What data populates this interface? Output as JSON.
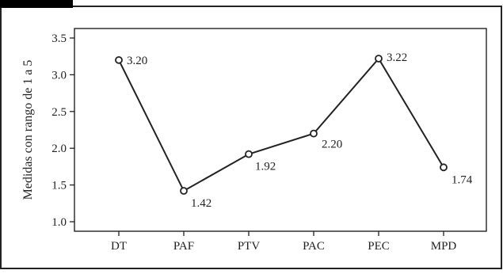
{
  "chart_data": {
    "type": "line",
    "title": "",
    "xlabel": "",
    "ylabel": "Medidas con rango de 1 a 5",
    "categories": [
      "DT",
      "PAF",
      "PTV",
      "PAC",
      "PEC",
      "MPD"
    ],
    "series": [
      {
        "name": "",
        "values": [
          3.2,
          1.42,
          1.92,
          2.2,
          3.22,
          1.74
        ],
        "data_labels": [
          "3.20",
          "1.42",
          "1.92",
          "2.20",
          "3.22",
          "1.74"
        ]
      }
    ],
    "ylim": [
      1.0,
      3.5
    ],
    "yticks": [
      1.0,
      1.5,
      2.0,
      2.5,
      3.0,
      3.5
    ],
    "ytick_labels": [
      "1.0",
      "1.5",
      "2.0",
      "2.5",
      "3.0",
      "3.5"
    ],
    "grid": false,
    "legend": "none",
    "colors": {
      "line": "#222222",
      "frame": "#222222",
      "tab": "#000000"
    }
  }
}
